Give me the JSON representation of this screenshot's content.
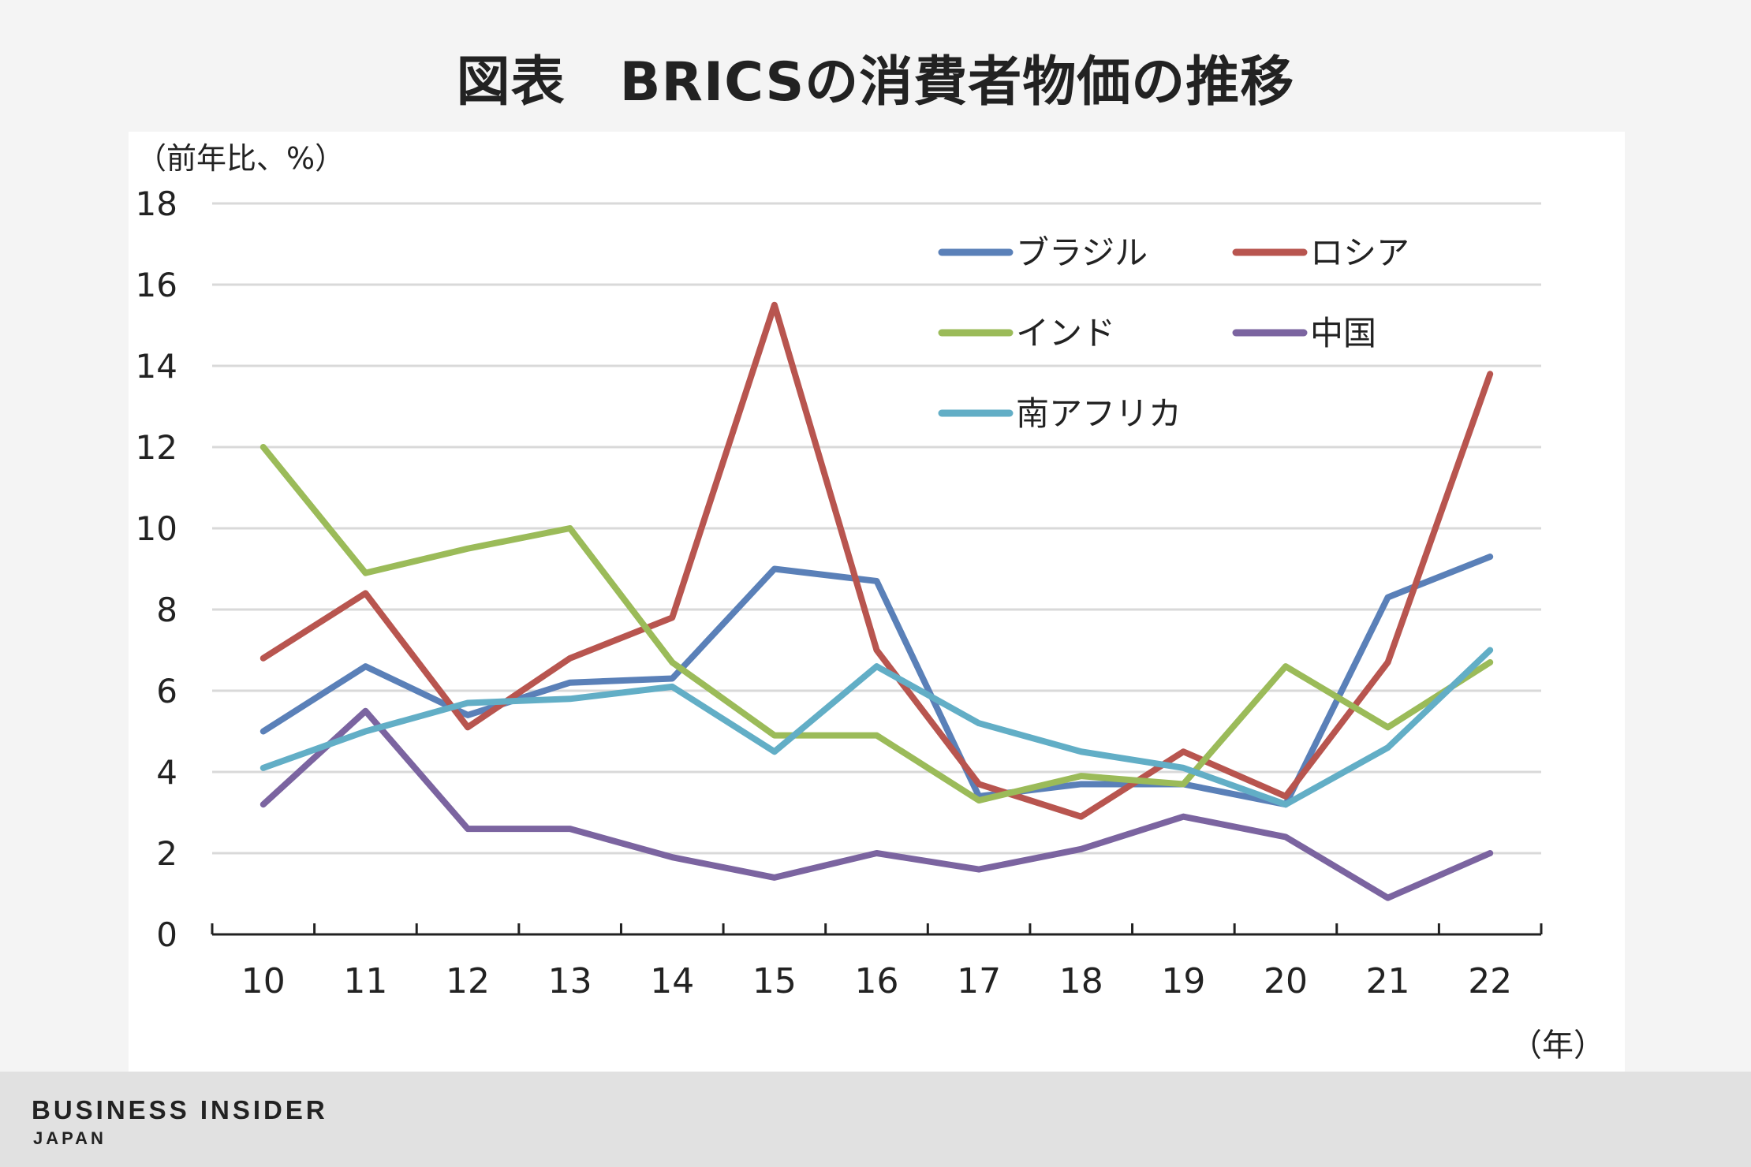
{
  "chart_data": {
    "type": "line",
    "title": "図表　BRICSの消費者物価の推移",
    "ylabel": "（前年比、%）",
    "xlabel": "（年）",
    "categories": [
      "10",
      "11",
      "12",
      "13",
      "14",
      "15",
      "16",
      "17",
      "18",
      "19",
      "20",
      "21",
      "22"
    ],
    "ylim": [
      0,
      18
    ],
    "yticks": [
      0,
      2,
      4,
      6,
      8,
      10,
      12,
      14,
      16,
      18
    ],
    "grid": true,
    "legend_position": "top-right",
    "series": [
      {
        "name": "ブラジル",
        "color": "#5a80b8",
        "values": [
          5.0,
          6.6,
          5.4,
          6.2,
          6.3,
          9.0,
          8.7,
          3.4,
          3.7,
          3.7,
          3.2,
          8.3,
          9.3
        ]
      },
      {
        "name": "ロシア",
        "color": "#b8554f",
        "values": [
          6.8,
          8.4,
          5.1,
          6.8,
          7.8,
          15.5,
          7.0,
          3.7,
          2.9,
          4.5,
          3.4,
          6.7,
          13.8
        ]
      },
      {
        "name": "インド",
        "color": "#9bbb59",
        "values": [
          12.0,
          8.9,
          9.5,
          10.0,
          6.7,
          4.9,
          4.9,
          3.3,
          3.9,
          3.7,
          6.6,
          5.1,
          6.7
        ]
      },
      {
        "name": "中国",
        "color": "#7b64a0",
        "values": [
          3.2,
          5.5,
          2.6,
          2.6,
          1.9,
          1.4,
          2.0,
          1.6,
          2.1,
          2.9,
          2.4,
          0.9,
          2.0
        ]
      },
      {
        "name": "南アフリカ",
        "color": "#62aec6",
        "values": [
          4.1,
          5.0,
          5.7,
          5.8,
          6.1,
          4.5,
          6.6,
          5.2,
          4.5,
          4.1,
          3.2,
          4.6,
          7.0
        ]
      }
    ]
  },
  "footer": {
    "brand": "BUSINESS INSIDER",
    "sub": "JAPAN"
  }
}
